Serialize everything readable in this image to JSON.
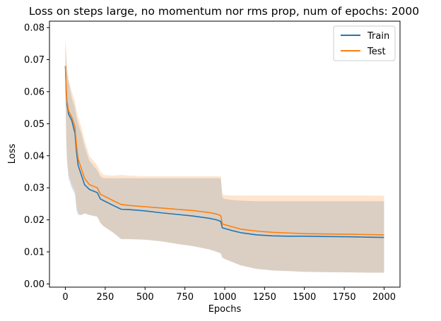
{
  "chart_data": {
    "type": "line",
    "title": "Loss on steps large, no momentum nor rms prop, num of epochs: 2000",
    "xlabel": "Epochs",
    "ylabel": "Loss",
    "xlim": [
      -100,
      2100
    ],
    "ylim": [
      -0.001,
      0.082
    ],
    "xticks": [
      0,
      250,
      500,
      750,
      1000,
      1250,
      1500,
      1750,
      2000
    ],
    "yticks": [
      0.0,
      0.01,
      0.02,
      0.03,
      0.04,
      0.05,
      0.06,
      0.07,
      0.08
    ],
    "ytick_labels": [
      "0.00",
      "0.01",
      "0.02",
      "0.03",
      "0.04",
      "0.05",
      "0.06",
      "0.07",
      "0.08"
    ],
    "legend_position": "top-right",
    "grid": false,
    "series": [
      {
        "name": "Train",
        "color": "#1f77b4",
        "band_color": "#1f77b4",
        "band_opacity": 0.2,
        "x": [
          0,
          5,
          10,
          20,
          40,
          60,
          70,
          80,
          100,
          120,
          150,
          200,
          220,
          240,
          300,
          350,
          400,
          500,
          600,
          700,
          800,
          900,
          950,
          975,
          985,
          1000,
          1050,
          1100,
          1200,
          1300,
          1400,
          1500,
          1600,
          1800,
          1900,
          2000
        ],
        "mean": [
          0.068,
          0.06,
          0.056,
          0.053,
          0.051,
          0.047,
          0.041,
          0.037,
          0.034,
          0.031,
          0.0295,
          0.0285,
          0.0265,
          0.026,
          0.0245,
          0.0233,
          0.0232,
          0.0228,
          0.0222,
          0.0217,
          0.0212,
          0.0205,
          0.02,
          0.0195,
          0.0175,
          0.0173,
          0.0166,
          0.016,
          0.0153,
          0.015,
          0.0149,
          0.0149,
          0.0148,
          0.0147,
          0.0146,
          0.0145
        ],
        "lower": [
          0.06,
          0.045,
          0.038,
          0.033,
          0.03,
          0.028,
          0.023,
          0.0215,
          0.0215,
          0.022,
          0.0215,
          0.021,
          0.019,
          0.018,
          0.016,
          0.014,
          0.014,
          0.0138,
          0.0133,
          0.0125,
          0.0118,
          0.0108,
          0.01,
          0.0095,
          0.0082,
          0.0078,
          0.0068,
          0.0058,
          0.0047,
          0.0042,
          0.004,
          0.0038,
          0.0037,
          0.0036,
          0.0035,
          0.0035
        ],
        "upper": [
          0.076,
          0.07,
          0.066,
          0.063,
          0.058,
          0.055,
          0.052,
          0.05,
          0.047,
          0.043,
          0.0385,
          0.0355,
          0.0335,
          0.033,
          0.033,
          0.033,
          0.033,
          0.033,
          0.033,
          0.033,
          0.033,
          0.033,
          0.033,
          0.033,
          0.027,
          0.0265,
          0.0262,
          0.026,
          0.0258,
          0.0258,
          0.0258,
          0.0258,
          0.0258,
          0.0258,
          0.0258,
          0.0258
        ]
      },
      {
        "name": "Test",
        "color": "#ff7f0e",
        "band_color": "#ff7f0e",
        "band_opacity": 0.2,
        "x": [
          0,
          5,
          10,
          20,
          40,
          60,
          70,
          80,
          100,
          120,
          150,
          200,
          220,
          240,
          300,
          350,
          400,
          500,
          600,
          700,
          800,
          900,
          950,
          975,
          985,
          1000,
          1050,
          1100,
          1200,
          1300,
          1400,
          1500,
          1600,
          1800,
          1900,
          2000
        ],
        "mean": [
          0.068,
          0.061,
          0.057,
          0.054,
          0.052,
          0.049,
          0.043,
          0.039,
          0.036,
          0.033,
          0.031,
          0.03,
          0.028,
          0.0275,
          0.026,
          0.0248,
          0.0245,
          0.0241,
          0.0237,
          0.0233,
          0.0229,
          0.0223,
          0.0218,
          0.0213,
          0.0187,
          0.0185,
          0.0178,
          0.0171,
          0.0165,
          0.0161,
          0.0159,
          0.0157,
          0.0156,
          0.0155,
          0.0154,
          0.0153
        ],
        "lower": [
          0.06,
          0.046,
          0.039,
          0.034,
          0.031,
          0.029,
          0.024,
          0.022,
          0.0215,
          0.022,
          0.0215,
          0.021,
          0.019,
          0.018,
          0.016,
          0.014,
          0.014,
          0.0138,
          0.0133,
          0.0125,
          0.0118,
          0.0108,
          0.01,
          0.0095,
          0.0082,
          0.0078,
          0.0068,
          0.0058,
          0.0047,
          0.0042,
          0.004,
          0.0038,
          0.0037,
          0.0036,
          0.0035,
          0.0035
        ],
        "upper": [
          0.077,
          0.072,
          0.068,
          0.064,
          0.06,
          0.057,
          0.054,
          0.052,
          0.049,
          0.045,
          0.04,
          0.037,
          0.035,
          0.034,
          0.0338,
          0.034,
          0.0338,
          0.0336,
          0.0336,
          0.0336,
          0.0336,
          0.0336,
          0.0336,
          0.0336,
          0.028,
          0.0277,
          0.0276,
          0.0276,
          0.0276,
          0.0276,
          0.0276,
          0.0276,
          0.0276,
          0.0276,
          0.0276,
          0.0275
        ]
      }
    ]
  }
}
